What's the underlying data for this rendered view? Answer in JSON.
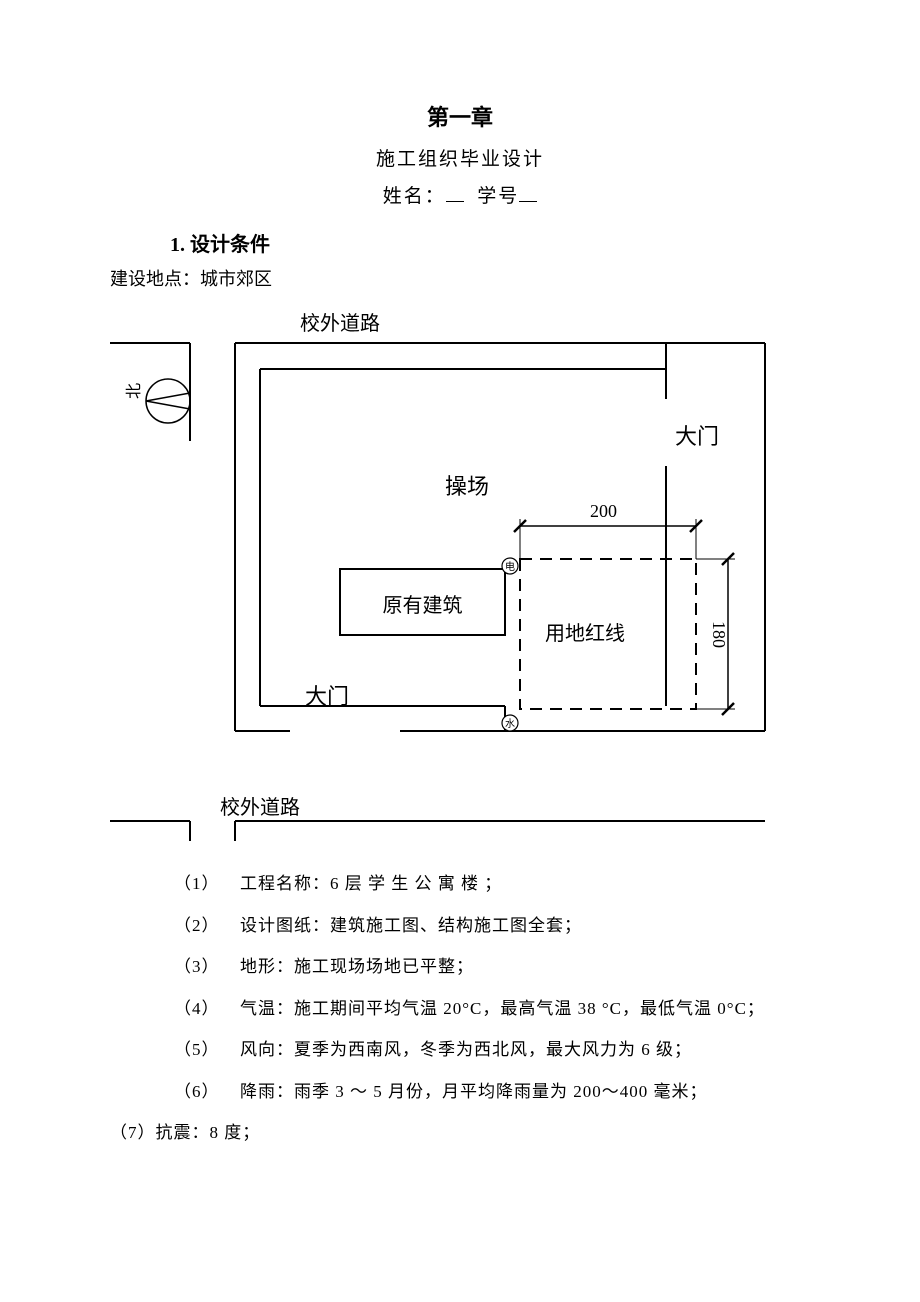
{
  "header": {
    "chapter": "第一章",
    "subtitle": "施工组织毕业设计",
    "name_prefix": "姓名：",
    "id_prefix": "学号"
  },
  "section": {
    "number": "1.",
    "title": "设计条件"
  },
  "location": {
    "label": "建设地点：",
    "value": "城市郊区"
  },
  "diagram": {
    "road_top": "校外道路",
    "road_bottom": "校外道路",
    "gate_right": "大门",
    "gate_bottom": "大门",
    "field": "操场",
    "existing_building": "原有建筑",
    "redline": "用地红线",
    "dim_width": "200",
    "dim_height": "180",
    "compass_label": "北",
    "elec_symbol": "电",
    "water_symbol": "水",
    "colors": {
      "line": "#000000",
      "bg": "#ffffff"
    },
    "stroke_width": 2
  },
  "conditions": [
    {
      "num": "（1）",
      "text": "工程名称：6 层 学 生 公 寓 楼 ；"
    },
    {
      "num": "（2）",
      "text": "设计图纸：建筑施工图、结构施工图全套；"
    },
    {
      "num": "（3）",
      "text": "地形：施工现场场地已平整；"
    },
    {
      "num": "（4）",
      "text": "气温：施工期间平均气温 20°C，最高气温 38 °C，最低气温 0°C；"
    },
    {
      "num": "（5）",
      "text": "风向：夏季为西南风，冬季为西北风，最大风力为 6 级；"
    },
    {
      "num": "（6）",
      "text": "降雨：雨季 3 ～ 5 月份，月平均降雨量为 200～400 毫米；"
    }
  ],
  "condition_last": {
    "num": "（7）",
    "text": "抗震：8 度；"
  }
}
